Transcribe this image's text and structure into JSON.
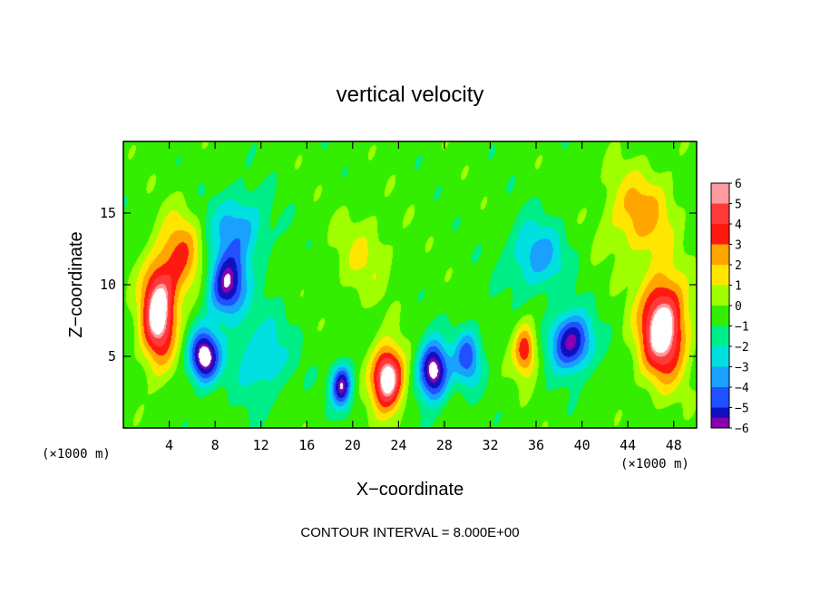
{
  "chart_data": {
    "type": "heatmap",
    "title": "vertical velocity",
    "xlabel": "X−coordinate",
    "ylabel": "Z−coordinate",
    "x_unit_left": "(×1000 m)",
    "x_unit_right": "(×1000 m)",
    "xlim": [
      0,
      50
    ],
    "ylim": [
      0,
      20
    ],
    "x_ticks": [
      4,
      8,
      12,
      16,
      20,
      24,
      28,
      32,
      36,
      40,
      44,
      48
    ],
    "y_ticks": [
      5,
      10,
      15
    ],
    "colorbar": {
      "levels": [
        6,
        5,
        4,
        3,
        2,
        1,
        0,
        -1,
        -2,
        -3,
        -4,
        -5,
        -6
      ],
      "labels": [
        "6",
        "5",
        "4",
        "3",
        "2",
        "1",
        "0",
        "−1",
        "−2",
        "−3",
        "−4",
        "−5",
        "−6"
      ],
      "colors": [
        "#ff9aa0",
        "#ff3a3a",
        "#ff1a10",
        "#ffa500",
        "#ffe600",
        "#a0ff00",
        "#33ee00",
        "#00ee88",
        "#00e0e0",
        "#1aa0ff",
        "#2050ff",
        "#1010c0",
        "#8a00b0"
      ]
    },
    "features": [
      {
        "x": 3,
        "z": 8,
        "sx": 1.5,
        "sz": 3.5,
        "w": 7
      },
      {
        "x": 5,
        "z": 12,
        "sx": 1.8,
        "sz": 3.0,
        "w": 3.5
      },
      {
        "x": 7,
        "z": 5,
        "sx": 1.3,
        "sz": 1.8,
        "w": -7
      },
      {
        "x": 9,
        "z": 10,
        "sx": 1.6,
        "sz": 2.2,
        "w": -6
      },
      {
        "x": 10,
        "z": 14,
        "sx": 2.5,
        "sz": 2.5,
        "w": -3
      },
      {
        "x": 12,
        "z": 5,
        "sx": 2.5,
        "sz": 3.0,
        "w": -2.5
      },
      {
        "x": 19,
        "z": 3,
        "sx": 0.9,
        "sz": 1.5,
        "w": -6
      },
      {
        "x": 21,
        "z": 12,
        "sx": 2.5,
        "sz": 3.0,
        "w": 1.5
      },
      {
        "x": 23,
        "z": 3.5,
        "sx": 1.4,
        "sz": 2.2,
        "w": 7.5
      },
      {
        "x": 27,
        "z": 4,
        "sx": 1.3,
        "sz": 2.0,
        "w": -7
      },
      {
        "x": 30,
        "z": 5,
        "sx": 1.2,
        "sz": 2.0,
        "w": -4
      },
      {
        "x": 35,
        "z": 5.5,
        "sx": 1.0,
        "sz": 1.8,
        "w": 4.5
      },
      {
        "x": 36,
        "z": 12,
        "sx": 2.5,
        "sz": 2.5,
        "w": -3
      },
      {
        "x": 39,
        "z": 6,
        "sx": 1.8,
        "sz": 2.0,
        "w": -6
      },
      {
        "x": 45,
        "z": 15,
        "sx": 3.0,
        "sz": 3.0,
        "w": 3
      },
      {
        "x": 47,
        "z": 7,
        "sx": 2.0,
        "sz": 3.5,
        "w": 7.5
      }
    ],
    "grid": false
  },
  "footer": {
    "contour_interval": "CONTOUR INTERVAL = 8.000E+00"
  }
}
